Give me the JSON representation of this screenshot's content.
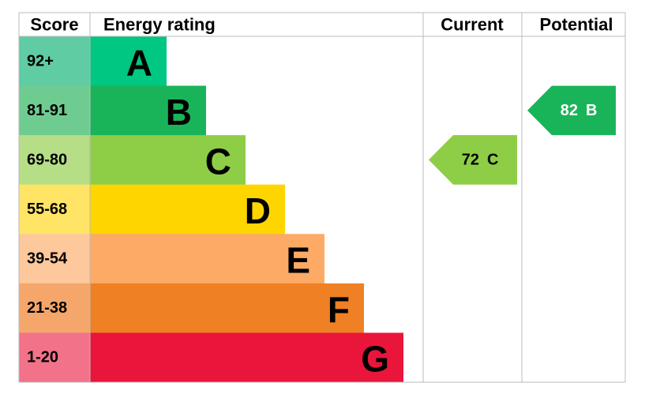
{
  "header": {
    "score": "Score",
    "rating": "Energy rating",
    "current": "Current",
    "potential": "Potential"
  },
  "bands": [
    {
      "range": "92+",
      "letter": "A",
      "color": "#00c781",
      "light": "#5fcca3"
    },
    {
      "range": "81-91",
      "letter": "B",
      "color": "#19b459",
      "light": "#6fcc90"
    },
    {
      "range": "69-80",
      "letter": "C",
      "color": "#8dce46",
      "light": "#b5de87"
    },
    {
      "range": "55-68",
      "letter": "D",
      "color": "#ffd500",
      "light": "#ffe466"
    },
    {
      "range": "39-54",
      "letter": "E",
      "color": "#fcaa65",
      "light": "#fdc89c"
    },
    {
      "range": "21-38",
      "letter": "F",
      "color": "#ef8023",
      "light": "#f4a66b"
    },
    {
      "range": "1-20",
      "letter": "G",
      "color": "#e9153b",
      "light": "#f2728a"
    }
  ],
  "current": {
    "value": 72,
    "letter": "C"
  },
  "potential": {
    "value": 82,
    "letter": "B"
  }
}
